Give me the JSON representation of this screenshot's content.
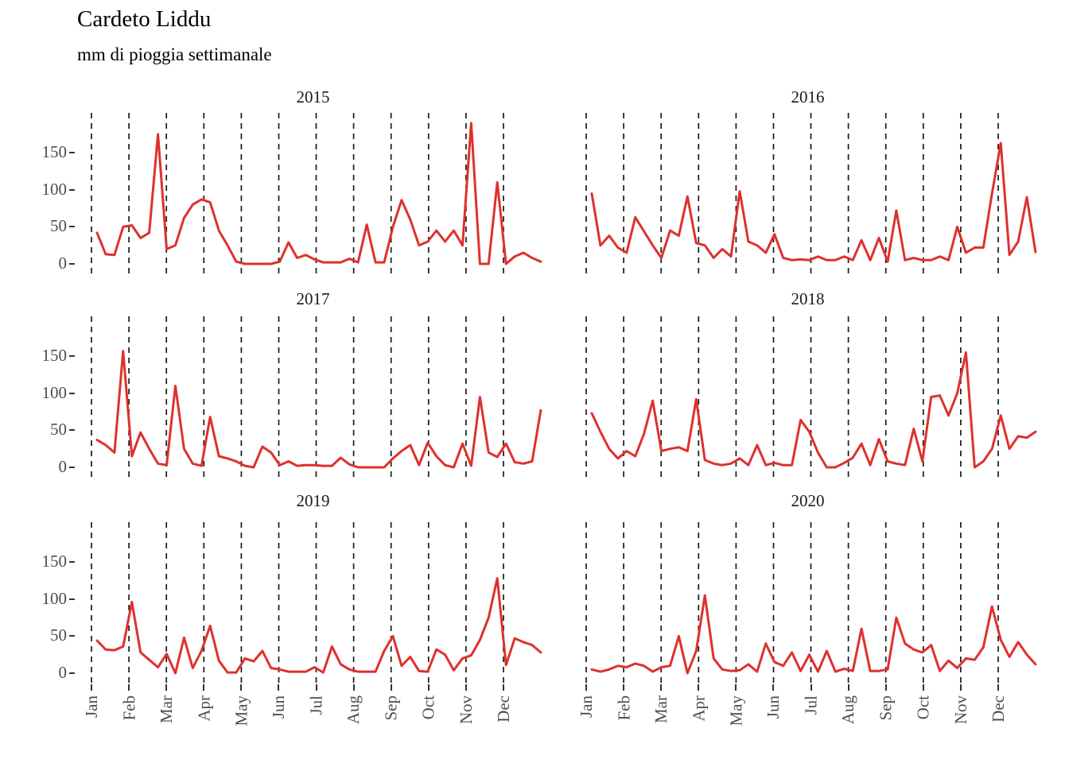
{
  "header": {
    "title": "Cardeto Liddu",
    "subtitle": "mm di pioggia settimanale"
  },
  "chart_data": {
    "type": "line",
    "title": "Cardeto Liddu",
    "subtitle": "mm di pioggia settimanale",
    "x_unit": "week of year (weekly values, Jan to Dec)",
    "x_tick_labels": [
      "Jan",
      "Feb",
      "Mar",
      "Apr",
      "May",
      "Jun",
      "Jul",
      "Aug",
      "Sep",
      "Oct",
      "Nov",
      "Dec"
    ],
    "y_ticks": [
      0,
      50,
      100,
      150
    ],
    "ylim": [
      0,
      205
    ],
    "grid": "vertical dashed gridline at each month start, no horizontal gridlines",
    "legend": "none",
    "line_color": "#de312d",
    "facet_layout": "2 columns x 3 rows",
    "facets": [
      {
        "label": "2015",
        "values": [
          42,
          13,
          12,
          50,
          52,
          35,
          42,
          175,
          20,
          25,
          62,
          80,
          87,
          83,
          45,
          25,
          3,
          0,
          0,
          0,
          0,
          3,
          29,
          8,
          12,
          6,
          2,
          2,
          2,
          7,
          2,
          53,
          2,
          2,
          50,
          86,
          60,
          25,
          30,
          45,
          30,
          45,
          25,
          190,
          0,
          0,
          110,
          0,
          10,
          15,
          8,
          3
        ]
      },
      {
        "label": "2016",
        "values": [
          95,
          25,
          38,
          22,
          15,
          63,
          44,
          25,
          8,
          45,
          38,
          91,
          28,
          25,
          8,
          20,
          10,
          98,
          30,
          25,
          15,
          40,
          8,
          5,
          6,
          5,
          10,
          5,
          5,
          10,
          5,
          32,
          5,
          35,
          3,
          72,
          5,
          8,
          5,
          5,
          10,
          5,
          50,
          15,
          22,
          22,
          95,
          163,
          12,
          30,
          90,
          16
        ]
      },
      {
        "label": "2017",
        "values": [
          37,
          30,
          20,
          157,
          15,
          47,
          25,
          5,
          3,
          110,
          25,
          5,
          2,
          68,
          15,
          12,
          8,
          2,
          0,
          28,
          20,
          3,
          8,
          2,
          3,
          3,
          2,
          2,
          13,
          4,
          0,
          0,
          0,
          0,
          12,
          22,
          30,
          3,
          33,
          15,
          3,
          0,
          32,
          2,
          95,
          20,
          14,
          32,
          7,
          5,
          8,
          77
        ]
      },
      {
        "label": "2018",
        "values": [
          73,
          48,
          25,
          12,
          22,
          15,
          45,
          90,
          22,
          25,
          27,
          22,
          92,
          10,
          5,
          3,
          5,
          12,
          3,
          30,
          3,
          6,
          3,
          3,
          64,
          48,
          20,
          0,
          0,
          6,
          13,
          32,
          3,
          38,
          8,
          5,
          3,
          52,
          8,
          95,
          97,
          70,
          100,
          155,
          0,
          8,
          25,
          70,
          25,
          42,
          40,
          48
        ]
      },
      {
        "label": "2019",
        "values": [
          44,
          32,
          31,
          36,
          96,
          28,
          18,
          8,
          26,
          0,
          48,
          7,
          30,
          64,
          17,
          1,
          1,
          20,
          16,
          30,
          7,
          5,
          2,
          2,
          2,
          8,
          1,
          36,
          12,
          5,
          2,
          2,
          2,
          30,
          50,
          10,
          22,
          3,
          2,
          32,
          25,
          4,
          20,
          24,
          45,
          75,
          128,
          11,
          47,
          42,
          38,
          28
        ]
      },
      {
        "label": "2020",
        "values": [
          5,
          2,
          5,
          10,
          8,
          13,
          10,
          2,
          8,
          10,
          50,
          0,
          30,
          105,
          20,
          5,
          3,
          4,
          12,
          2,
          40,
          15,
          10,
          28,
          3,
          25,
          2,
          30,
          2,
          6,
          3,
          60,
          3,
          3,
          5,
          75,
          40,
          32,
          28,
          38,
          3,
          17,
          7,
          20,
          18,
          35,
          90,
          45,
          22,
          42,
          25,
          12
        ]
      }
    ]
  }
}
